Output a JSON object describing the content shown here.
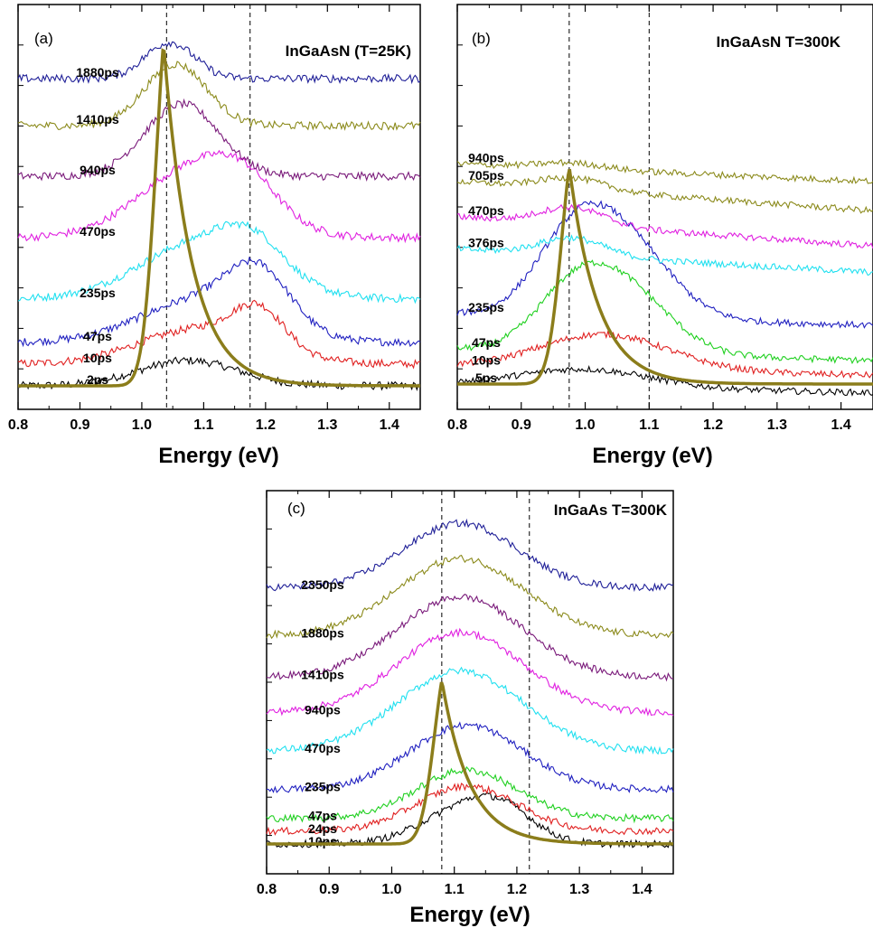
{
  "chart_data": [
    {
      "type": "line",
      "panel_label": "(a)",
      "title": "InGaAsN (T=25K)",
      "xlabel": "Energy (eV)",
      "xlim": [
        0.8,
        1.45
      ],
      "xticks": [
        "0.8",
        "0.9",
        "1.0",
        "1.1",
        "1.2",
        "1.3",
        "1.4"
      ],
      "reference_lines_x": [
        1.04,
        1.175
      ],
      "excitation_profile": {
        "peak_x": 1.035,
        "peak_y": 0.95,
        "color": "#8b7d1b"
      },
      "series": [
        {
          "name": "2ps",
          "color": "#000000",
          "baseline": 0.0,
          "peaks": [
            {
              "x": 1.075,
              "amp": 0.07,
              "w": 0.08
            }
          ]
        },
        {
          "name": "10ps",
          "color": "#e02020",
          "baseline": 0.06,
          "peaks": [
            {
              "x": 1.1,
              "amp": 0.1,
              "w": 0.1
            },
            {
              "x": 1.19,
              "amp": 0.1,
              "w": 0.04
            }
          ]
        },
        {
          "name": "47ps",
          "color": "#2020c0",
          "baseline": 0.12,
          "peaks": [
            {
              "x": 1.1,
              "amp": 0.12,
              "w": 0.1
            },
            {
              "x": 1.19,
              "amp": 0.14,
              "w": 0.05
            }
          ]
        },
        {
          "name": "235ps",
          "color": "#20e0f0",
          "baseline": 0.24,
          "peaks": [
            {
              "x": 1.1,
              "amp": 0.16,
              "w": 0.1
            },
            {
              "x": 1.18,
              "amp": 0.08,
              "w": 0.05
            }
          ]
        },
        {
          "name": "470ps",
          "color": "#e020e0",
          "baseline": 0.41,
          "peaks": [
            {
              "x": 1.09,
              "amp": 0.2,
              "w": 0.09
            },
            {
              "x": 1.17,
              "amp": 0.07,
              "w": 0.05
            }
          ]
        },
        {
          "name": "940ps",
          "color": "#7a1a7a",
          "baseline": 0.58,
          "peaks": [
            {
              "x": 1.065,
              "amp": 0.2,
              "w": 0.06
            }
          ]
        },
        {
          "name": "1410ps",
          "color": "#8b8a1b",
          "baseline": 0.72,
          "peaks": [
            {
              "x": 1.055,
              "amp": 0.17,
              "w": 0.05
            }
          ]
        },
        {
          "name": "1880ps",
          "color": "#202098",
          "baseline": 0.85,
          "peaks": [
            {
              "x": 1.045,
              "amp": 0.1,
              "w": 0.04
            }
          ]
        }
      ]
    },
    {
      "type": "line",
      "panel_label": "(b)",
      "title": "InGaAsN T=300K",
      "xlabel": "Energy (eV)",
      "xlim": [
        0.8,
        1.45
      ],
      "xticks": [
        "0.8",
        "0.9",
        "1.0",
        "1.1",
        "1.2",
        "1.3",
        "1.4"
      ],
      "reference_lines_x": [
        0.975,
        1.1
      ],
      "excitation_profile": {
        "peak_x": 0.975,
        "peak_y": 0.74,
        "color": "#8b7d1b"
      },
      "series": [
        {
          "name": "5ps",
          "color": "#000000",
          "baseline": 0.0,
          "tilt": -0.03,
          "peaks": [
            {
              "x": 1.0,
              "amp": 0.06,
              "w": 0.1
            }
          ]
        },
        {
          "name": "10ps",
          "color": "#e02020",
          "baseline": 0.06,
          "tilt": -0.03,
          "peaks": [
            {
              "x": 1.03,
              "amp": 0.12,
              "w": 0.1
            }
          ]
        },
        {
          "name": "47ps",
          "color": "#20d020",
          "baseline": 0.12,
          "tilt": -0.04,
          "peaks": [
            {
              "x": 0.98,
              "amp": 0.18,
              "w": 0.06
            },
            {
              "x": 1.065,
              "amp": 0.2,
              "w": 0.07
            }
          ]
        },
        {
          "name": "235ps",
          "color": "#2020c0",
          "baseline": 0.24,
          "tilt": -0.04,
          "peaks": [
            {
              "x": 0.98,
              "amp": 0.24,
              "w": 0.06
            },
            {
              "x": 1.065,
              "amp": 0.24,
              "w": 0.07
            }
          ]
        },
        {
          "name": "376ps",
          "color": "#20e0f0",
          "baseline": 0.46,
          "tilt": -0.08,
          "peaks": [
            {
              "x": 0.98,
              "amp": 0.06,
              "w": 0.05
            }
          ]
        },
        {
          "name": "470ps",
          "color": "#e020e0",
          "baseline": 0.57,
          "tilt": -0.1,
          "peaks": [
            {
              "x": 0.98,
              "amp": 0.06,
              "w": 0.05
            }
          ]
        },
        {
          "name": "705ps",
          "color": "#8b8a1b",
          "baseline": 0.69,
          "tilt": -0.1,
          "peaks": [
            {
              "x": 0.98,
              "amp": 0.04,
              "w": 0.05
            }
          ]
        },
        {
          "name": "940ps",
          "color": "#8b8a1b",
          "baseline": 0.75,
          "tilt": -0.06,
          "peaks": [
            {
              "x": 0.98,
              "amp": 0.02,
              "w": 0.05
            }
          ]
        }
      ]
    },
    {
      "type": "line",
      "panel_label": "(c)",
      "title": "InGaAs T=300K",
      "xlabel": "Energy (eV)",
      "xlim": [
        0.8,
        1.45
      ],
      "xticks": [
        "0.8",
        "0.9",
        "1.0",
        "1.1",
        "1.2",
        "1.3",
        "1.4"
      ],
      "reference_lines_x": [
        1.08,
        1.22
      ],
      "excitation_profile": {
        "peak_x": 1.08,
        "peak_y": 0.51,
        "color": "#8b7d1b"
      },
      "series": [
        {
          "name": "10ps",
          "color": "#000000",
          "baseline": 0.0,
          "peaks": [
            {
              "x": 1.12,
              "amp": 0.11,
              "w": 0.07
            },
            {
              "x": 1.18,
              "amp": 0.06,
              "w": 0.05
            }
          ]
        },
        {
          "name": "24ps",
          "color": "#e02020",
          "baseline": 0.04,
          "peaks": [
            {
              "x": 1.12,
              "amp": 0.14,
              "w": 0.08
            }
          ]
        },
        {
          "name": "47ps",
          "color": "#20d020",
          "baseline": 0.08,
          "peaks": [
            {
              "x": 1.12,
              "amp": 0.15,
              "w": 0.08
            }
          ]
        },
        {
          "name": "235ps",
          "color": "#2020c0",
          "baseline": 0.17,
          "peaks": [
            {
              "x": 1.12,
              "amp": 0.2,
              "w": 0.09
            }
          ]
        },
        {
          "name": "470ps",
          "color": "#20e0f0",
          "baseline": 0.29,
          "peaks": [
            {
              "x": 1.11,
              "amp": 0.25,
              "w": 0.1
            }
          ]
        },
        {
          "name": "940ps",
          "color": "#e020e0",
          "baseline": 0.41,
          "peaks": [
            {
              "x": 1.11,
              "amp": 0.25,
              "w": 0.1
            }
          ]
        },
        {
          "name": "1410ps",
          "color": "#7a1a7a",
          "baseline": 0.52,
          "peaks": [
            {
              "x": 1.11,
              "amp": 0.25,
              "w": 0.1
            }
          ]
        },
        {
          "name": "1880ps",
          "color": "#8b8a1b",
          "baseline": 0.65,
          "peaks": [
            {
              "x": 1.11,
              "amp": 0.24,
              "w": 0.1
            }
          ]
        },
        {
          "name": "2350ps",
          "color": "#202098",
          "baseline": 0.8,
          "peaks": [
            {
              "x": 1.11,
              "amp": 0.2,
              "w": 0.09
            }
          ]
        }
      ]
    }
  ]
}
